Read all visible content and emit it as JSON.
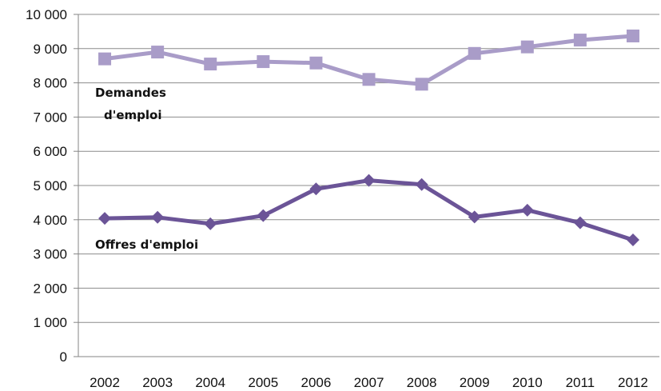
{
  "chart_data": {
    "type": "line",
    "categories": [
      "2002",
      "2003",
      "2004",
      "2005",
      "2006",
      "2007",
      "2008",
      "2009",
      "2010",
      "2011",
      "2012"
    ],
    "series": [
      {
        "name": "Demandes d'emploi",
        "label_lines": [
          "Demandes",
          "d'emploi"
        ],
        "color": "#A99CC8",
        "marker": "square",
        "values": [
          8700,
          8900,
          8550,
          8620,
          8580,
          8100,
          7960,
          8860,
          9050,
          9250,
          9370
        ]
      },
      {
        "name": "Offres d'emploi",
        "label_lines": [
          "Offres d'emploi"
        ],
        "color": "#6B5497",
        "marker": "diamond",
        "values": [
          4040,
          4070,
          3880,
          4120,
          4900,
          5150,
          5030,
          4080,
          4280,
          3910,
          3410
        ]
      }
    ],
    "y_ticks": [
      "0",
      "1 000",
      "2 000",
      "3 000",
      "4 000",
      "5 000",
      "6 000",
      "7 000",
      "8 000",
      "9 000",
      "10 000"
    ],
    "ylim": [
      0,
      10000
    ],
    "grid": true,
    "title": "",
    "xlabel": "",
    "ylabel": ""
  }
}
